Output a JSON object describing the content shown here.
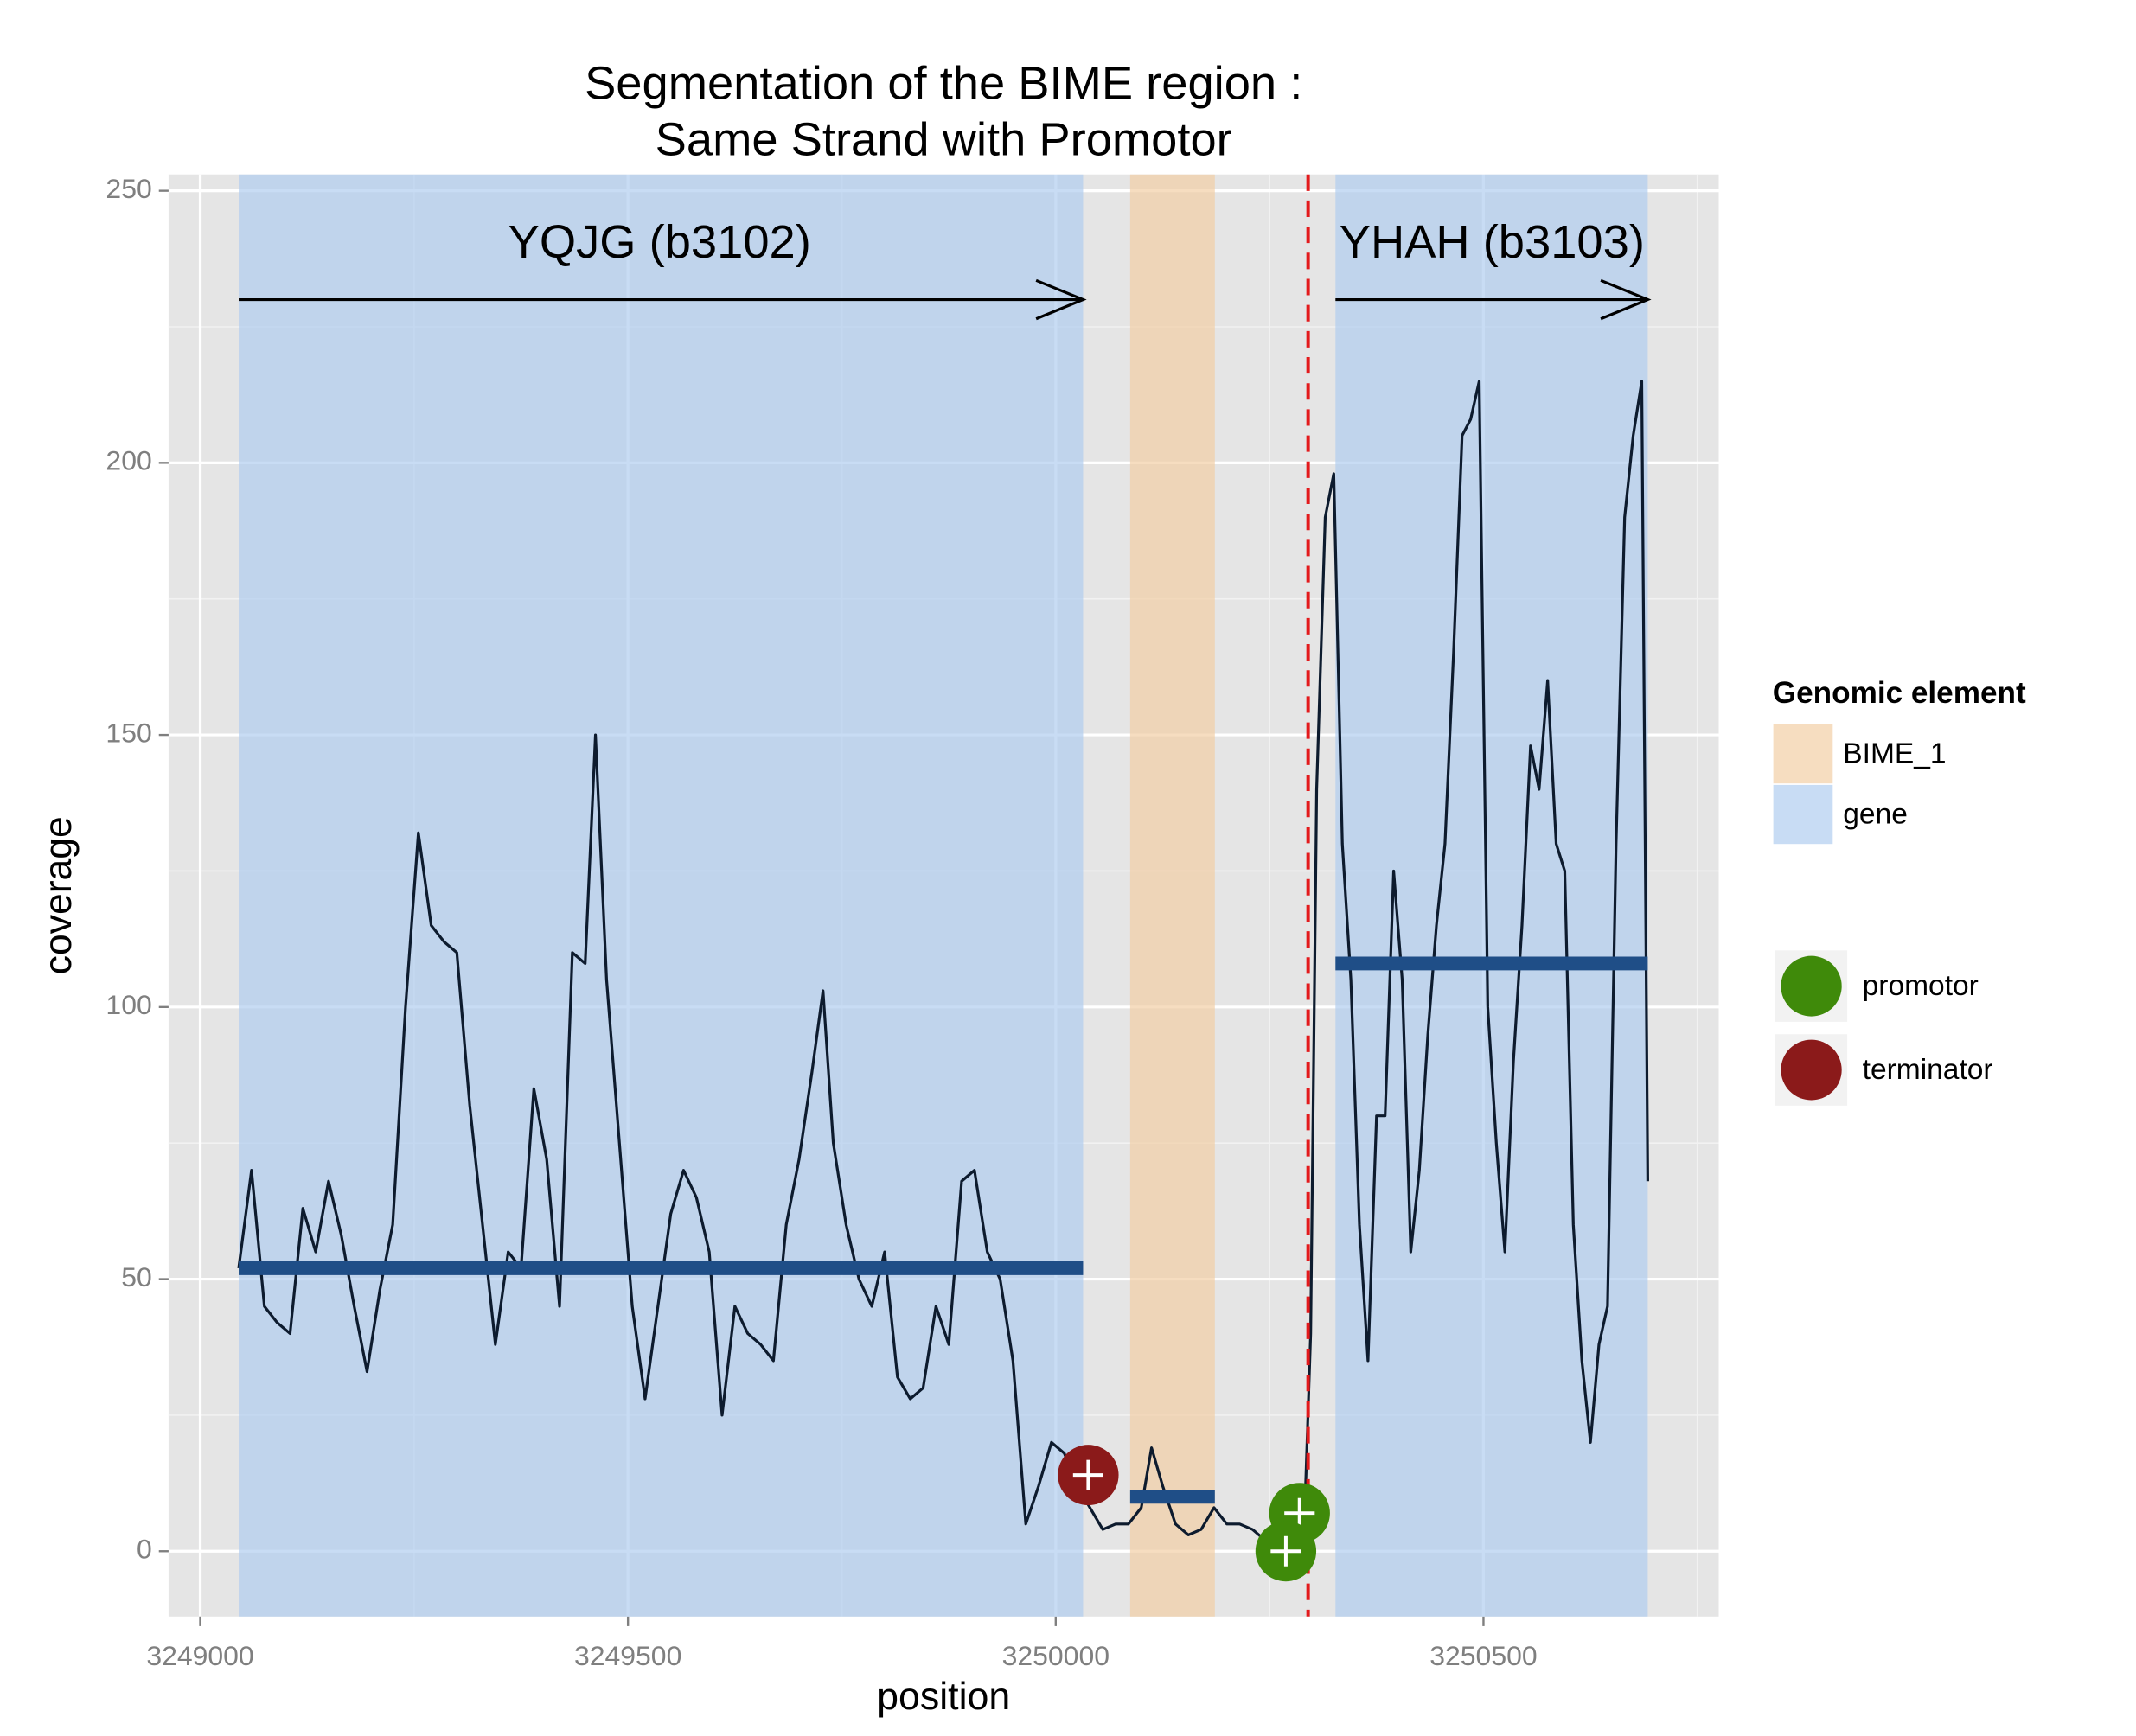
{
  "chart_data": {
    "type": "line",
    "title": [
      "Segmentation of the BIME region :",
      "Same Strand with Promotor"
    ],
    "xlabel": "position",
    "ylabel": "coverage",
    "xlim": [
      3248963,
      3250775
    ],
    "ylim": [
      -12,
      253
    ],
    "xticks": [
      3249000,
      3249500,
      3250000,
      3250500
    ],
    "yticks": [
      0,
      50,
      100,
      150,
      200,
      250
    ],
    "grid": true,
    "color": "#0d1b2e",
    "x": [
      3249045,
      3249060,
      3249075,
      3249090,
      3249105,
      3249120,
      3249135,
      3249150,
      3249165,
      3249180,
      3249195,
      3249210,
      3249225,
      3249240,
      3249255,
      3249270,
      3249285,
      3249300,
      3249315,
      3249330,
      3249345,
      3249360,
      3249375,
      3249390,
      3249405,
      3249420,
      3249435,
      3249450,
      3249462,
      3249475,
      3249490,
      3249505,
      3249520,
      3249535,
      3249550,
      3249565,
      3249580,
      3249595,
      3249610,
      3249625,
      3249640,
      3249655,
      3249670,
      3249685,
      3249700,
      3249715,
      3249728,
      3249740,
      3249755,
      3249770,
      3249785,
      3249800,
      3249815,
      3249830,
      3249845,
      3249860,
      3249875,
      3249890,
      3249905,
      3249920,
      3249935,
      3249950,
      3249965,
      3249980,
      3249995,
      3250010,
      3250025,
      3250040,
      3250055,
      3250070,
      3250085,
      3250100,
      3250112,
      3250125,
      3250140,
      3250155,
      3250170,
      3250185,
      3250200,
      3250215,
      3250230,
      3250245,
      3250260,
      3250275,
      3250290,
      3250298,
      3250305,
      3250315,
      3250325,
      3250335,
      3250345,
      3250355,
      3250365,
      3250375,
      3250385,
      3250395,
      3250405,
      3250415,
      3250425,
      3250435,
      3250445,
      3250455,
      3250465,
      3250475,
      3250485,
      3250495,
      3250505,
      3250515,
      3250525,
      3250535,
      3250545,
      3250555,
      3250565,
      3250575,
      3250585,
      3250595,
      3250605,
      3250615,
      3250625,
      3250635,
      3250645,
      3250655,
      3250665,
      3250675,
      3250685,
      3250692
    ],
    "values": [
      52,
      70,
      45,
      42,
      40,
      63,
      55,
      68,
      58,
      45,
      33,
      48,
      60,
      100,
      132,
      115,
      112,
      110,
      82,
      60,
      38,
      55,
      52,
      85,
      72,
      45,
      110,
      108,
      150,
      105,
      75,
      45,
      28,
      45,
      62,
      70,
      65,
      55,
      25,
      45,
      40,
      38,
      35,
      60,
      72,
      88,
      103,
      75,
      60,
      50,
      45,
      55,
      32,
      28,
      30,
      45,
      38,
      68,
      70,
      55,
      50,
      35,
      5,
      12,
      20,
      18,
      12,
      8,
      4,
      5,
      5,
      8,
      19,
      12,
      5,
      3,
      4,
      8,
      5,
      5,
      4,
      2,
      2,
      3,
      2,
      40,
      140,
      190,
      198,
      130,
      105,
      60,
      35,
      80,
      80,
      125,
      105,
      55,
      70,
      95,
      115,
      130,
      165,
      205,
      208,
      215,
      100,
      75,
      55,
      90,
      115,
      148,
      140,
      160,
      130,
      125,
      60,
      35,
      20,
      38,
      45,
      130,
      190,
      205,
      215,
      68
    ],
    "region_legend": {
      "title": "Genomic element",
      "items": [
        {
          "name": "BIME_1",
          "color": "#f2cea5"
        },
        {
          "name": "gene",
          "color": "#b0cdf0"
        }
      ]
    },
    "regions": [
      {
        "element": "gene",
        "start": 3249045,
        "end": 3250032
      },
      {
        "element": "BIME_1",
        "start": 3250087,
        "end": 3250186
      },
      {
        "element": "gene",
        "start": 3250327,
        "end": 3250692
      }
    ],
    "segments": {
      "color": "#1f4e87",
      "items": [
        {
          "start": 3249045,
          "end": 3250032,
          "value": 52
        },
        {
          "start": 3250087,
          "end": 3250186,
          "value": 10
        },
        {
          "start": 3250327,
          "end": 3250692,
          "value": 108
        }
      ]
    },
    "site_legend": [
      {
        "name": "promotor",
        "color": "#3f8a0a"
      },
      {
        "name": "terminator",
        "color": "#8b1a1a"
      }
    ],
    "sites": [
      {
        "kind": "terminator",
        "x": 3250038,
        "y": 14
      },
      {
        "kind": "promotor",
        "x": 3250285,
        "y": 7
      },
      {
        "kind": "promotor",
        "x": 3250269,
        "y": 0
      }
    ],
    "vline": {
      "x": 3250295,
      "color": "#e31a1c"
    },
    "genes": [
      {
        "label": "YQJG (b3102)",
        "start": 3249045,
        "end": 3250032,
        "y": 230,
        "label_x": 3249537,
        "label_y": 240
      },
      {
        "label": "YHAH (b3103)",
        "start": 3250327,
        "end": 3250692,
        "y": 230,
        "label_x": 3250510,
        "label_y": 240
      }
    ]
  }
}
